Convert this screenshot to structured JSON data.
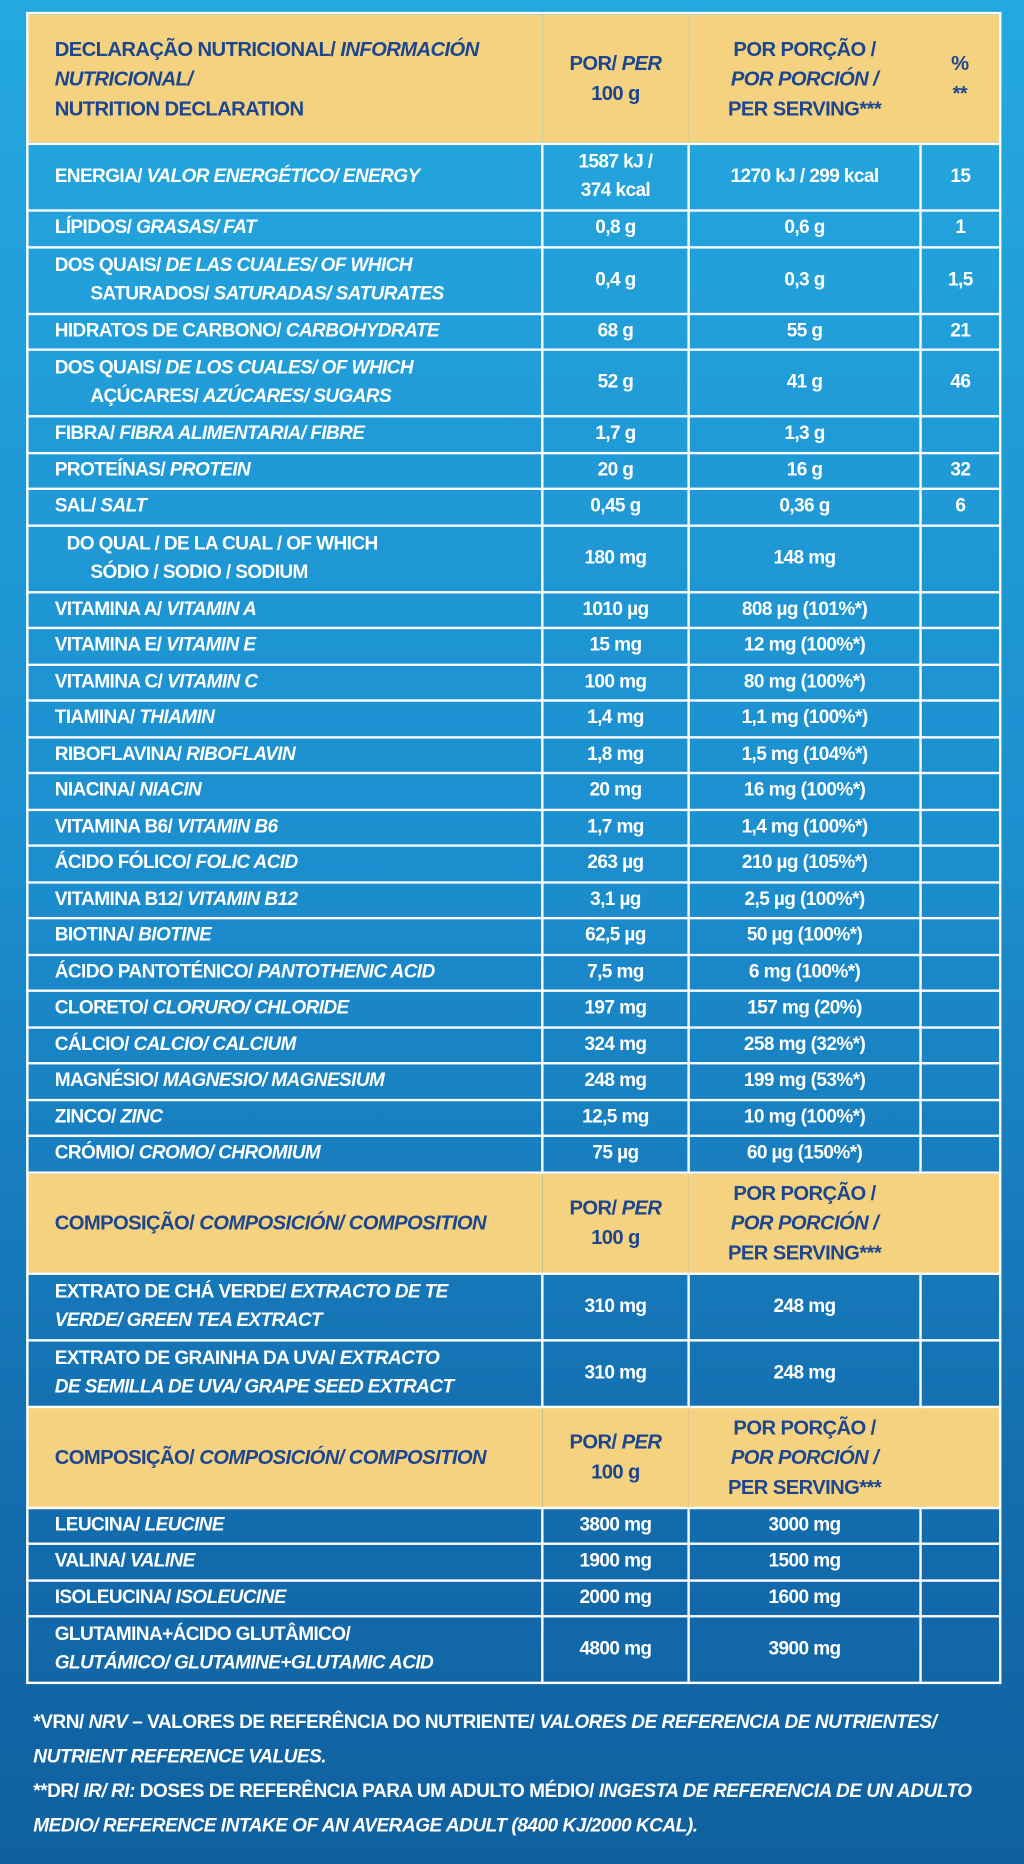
{
  "sections": [
    {
      "header": {
        "label": [
          [
            "DECLARAÇÃO NUTRICIONAL/",
            {
              "text": "INFORMACIÓN",
              "italic": true
            }
          ],
          [
            {
              "text": "NUTRICIONAL/",
              "italic": true
            }
          ],
          "NUTRITION DECLARATION"
        ],
        "per100": [
          [
            "POR/",
            {
              "text": "PER",
              "italic": true
            }
          ],
          "100 g"
        ],
        "serving": [
          "POR PORÇÃO /",
          [
            {
              "text": "POR PORCIÓN /",
              "italic": true
            }
          ],
          "PER SERVING***"
        ],
        "ri": [
          "%",
          "**"
        ]
      },
      "rows": [
        {
          "label": [
            [
              "ENERGIA/",
              {
                "text": "VALOR ENERGÉTICO/ ENERGY",
                "italic": true
              }
            ]
          ],
          "per100": [
            "1587 kJ /",
            "374 kcal"
          ],
          "serving": "1270 kJ / 299 kcal",
          "ri": "15"
        },
        {
          "label": [
            [
              "LÍPIDOS/",
              {
                "text": "GRASAS/ FAT",
                "italic": true
              }
            ]
          ],
          "per100": "0,8 g",
          "serving": "0,6 g",
          "ri": "1"
        },
        {
          "label": [
            [
              "DOS QUAIS/",
              {
                "text": "DE LAS CUALES/ OF WHICH",
                "italic": true
              }
            ],
            [
              "SATURADOS/",
              {
                "text": "SATURADAS/ SATURATES",
                "italic": true
              }
            ]
          ],
          "per100": "0,4 g",
          "serving": "0,3 g",
          "ri": "1,5"
        },
        {
          "label": [
            [
              "HIDRATOS DE CARBONO/",
              {
                "text": "CARBOHYDRATE",
                "italic": true
              }
            ]
          ],
          "per100": "68 g",
          "serving": "55 g",
          "ri": "21"
        },
        {
          "label": [
            [
              "DOS QUAIS/",
              {
                "text": "DE LOS CUALES/ OF WHICH",
                "italic": true
              }
            ],
            [
              "AÇÚCARES/",
              {
                "text": "AZÚCARES/ SUGARS",
                "italic": true
              }
            ]
          ],
          "per100": "52 g",
          "serving": "41 g",
          "ri": "46"
        },
        {
          "label": [
            [
              "FIBRA/",
              {
                "text": "FIBRA ALIMENTARIA/ FIBRE",
                "italic": true
              }
            ]
          ],
          "per100": "1,7 g",
          "serving": "1,3 g"
        },
        {
          "label": [
            [
              "PROTEÍNAS/",
              {
                "text": "PROTEIN",
                "italic": true
              }
            ]
          ],
          "per100": "20 g",
          "serving": "16 g",
          "ri": "32"
        },
        {
          "label": [
            [
              "SAL/",
              {
                "text": "SALT",
                "italic": true
              }
            ]
          ],
          "per100": "0,45 g",
          "serving": "0,36 g",
          "ri": "6"
        },
        {
          "label": [
            "DO QUAL / DE LA CUAL / OF WHICH",
            "SÓDIO / SODIO / SODIUM"
          ],
          "per100": "180 mg",
          "serving": "148 mg"
        },
        {
          "label": [
            [
              "VITAMINA A/",
              {
                "text": "VITAMIN A",
                "italic": true
              }
            ]
          ],
          "per100": "1010 µg",
          "serving": "808 µg (101%*)"
        },
        {
          "label": [
            [
              "VITAMINA E/",
              {
                "text": "VITAMIN E",
                "italic": true
              }
            ]
          ],
          "per100": "15 mg",
          "serving": "12 mg (100%*)"
        },
        {
          "label": [
            [
              "VITAMINA C/",
              {
                "text": "VITAMIN C",
                "italic": true
              }
            ]
          ],
          "per100": "100 mg",
          "serving": "80 mg (100%*)"
        },
        {
          "label": [
            [
              "TIAMINA/",
              {
                "text": "THIAMIN",
                "italic": true
              }
            ]
          ],
          "per100": "1,4 mg",
          "serving": "1,1 mg (100%*)"
        },
        {
          "label": [
            [
              "RIBOFLAVINA/",
              {
                "text": "RIBOFLAVIN",
                "italic": true
              }
            ]
          ],
          "per100": "1,8 mg",
          "serving": "1,5 mg (104%*)"
        },
        {
          "label": [
            [
              "NIACINA/",
              {
                "text": "NIACIN",
                "italic": true
              }
            ]
          ],
          "per100": "20 mg",
          "serving": "16 mg (100%*)"
        },
        {
          "label": [
            [
              "VITAMINA B6/",
              {
                "text": "VITAMIN B6",
                "italic": true
              }
            ]
          ],
          "per100": "1,7 mg",
          "serving": "1,4 mg (100%*)"
        },
        {
          "label": [
            [
              "ÁCIDO FÓLICO/",
              {
                "text": "FOLIC ACID",
                "italic": true
              }
            ]
          ],
          "per100": "263 µg",
          "serving": "210 µg (105%*)"
        },
        {
          "label": [
            [
              "VITAMINA B12/",
              {
                "text": "VITAMIN B12",
                "italic": true
              }
            ]
          ],
          "per100": "3,1 µg",
          "serving": "2,5 µg (100%*)"
        },
        {
          "label": [
            [
              "BIOTINA/",
              {
                "text": "BIOTINE",
                "italic": true
              }
            ]
          ],
          "per100": "62,5 µg",
          "serving": "50 µg (100%*)"
        },
        {
          "label": [
            [
              "ÁCIDO PANTOTÉNICO/",
              {
                "text": "PANTOTHENIC ACID",
                "italic": true
              }
            ]
          ],
          "per100": "7,5 mg",
          "serving": "6 mg (100%*)"
        },
        {
          "label": [
            [
              "CLORETO/",
              {
                "text": "CLORURO/ CHLORIDE",
                "italic": true
              }
            ]
          ],
          "per100": "197 mg",
          "serving": "157 mg (20%)"
        },
        {
          "label": [
            [
              "CÁLCIO/",
              {
                "text": "CALCIO/ CALCIUM",
                "italic": true
              }
            ]
          ],
          "per100": "324 mg",
          "serving": "258 mg (32%*)"
        },
        {
          "label": [
            [
              "MAGNÉSIO/",
              {
                "text": "MAGNESIO/ MAGNESIUM",
                "italic": true
              }
            ]
          ],
          "per100": "248 mg",
          "serving": "199 mg (53%*)"
        },
        {
          "label": [
            [
              "ZINCO/",
              {
                "text": "ZINC",
                "italic": true
              }
            ]
          ],
          "per100": "12,5 mg",
          "serving": "10 mg (100%*)"
        },
        {
          "label": [
            [
              "CRÓMIO/",
              {
                "text": "CROMO/ CHROMIUM",
                "italic": true
              }
            ]
          ],
          "per100": "75 µg",
          "serving": "60 µg (150%*)"
        }
      ]
    },
    {
      "header": {
        "label": [
          [
            "COMPOSIÇÃO/",
            {
              "text": "COMPOSICIÓN/ COMPOSITION",
              "italic": true
            }
          ]
        ],
        "per100": [
          [
            "POR/",
            {
              "text": "PER",
              "italic": true
            }
          ],
          "100 g"
        ],
        "serving": [
          "POR PORÇÃO /",
          [
            {
              "text": "POR PORCIÓN /",
              "italic": true
            }
          ],
          "PER SERVING***"
        ]
      },
      "rows": [
        {
          "label": [
            [
              "EXTRATO DE CHÁ VERDE/",
              {
                "text": "EXTRACTO DE TE",
                "italic": true
              }
            ],
            [
              {
                "text": "VERDE/ GREEN TEA EXTRACT",
                "italic": true
              }
            ]
          ],
          "per100": "310 mg",
          "serving": "248 mg"
        },
        {
          "label": [
            [
              "EXTRATO DE GRAINHA DA UVA/",
              {
                "text": "EXTRACTO",
                "italic": true
              }
            ],
            [
              {
                "text": "DE SEMILLA DE UVA/ GRAPE SEED EXTRACT",
                "italic": true
              }
            ]
          ],
          "per100": "310 mg",
          "serving": "248 mg"
        }
      ]
    },
    {
      "header": {
        "label": [
          [
            "COMPOSIÇÃO/",
            {
              "text": "COMPOSICIÓN/ COMPOSITION",
              "italic": true
            }
          ]
        ],
        "per100": [
          [
            "POR/",
            {
              "text": "PER",
              "italic": true
            }
          ],
          "100 g"
        ],
        "serving": [
          "POR PORÇÃO /",
          [
            {
              "text": "POR PORCIÓN /",
              "italic": true
            }
          ],
          "PER SERVING***"
        ]
      },
      "rows": [
        {
          "label": [
            [
              "LEUCINA/",
              {
                "text": "LEUCINE",
                "italic": true
              }
            ]
          ],
          "per100": "3800 mg",
          "serving": "3000 mg"
        },
        {
          "label": [
            [
              "VALINA/",
              {
                "text": "VALINE",
                "italic": true
              }
            ]
          ],
          "per100": "1900 mg",
          "serving": "1500 mg"
        },
        {
          "label": [
            [
              "ISOLEUCINA/",
              {
                "text": "ISOLEUCINE",
                "italic": true
              }
            ]
          ],
          "per100": "2000 mg",
          "serving": "1600 mg"
        },
        {
          "label": [
            [
              "GLUTAMINA+ÁCIDO GLUTÂMICO/"
            ],
            [
              {
                "text": "GLUTÁMICO/ GLUTAMINE+GLUTAMIC ACID",
                "italic": true
              }
            ]
          ],
          "per100": "4800 mg",
          "serving": "3900 mg"
        }
      ]
    }
  ],
  "footnotes": [
    [
      "*VRN/",
      {
        "text": "NRV",
        "italic": true
      },
      "– VALORES DE REFERÊNCIA DO NUTRIENTE/",
      {
        "text": "VALORES DE REFERENCIA DE NUTRIENTES/ NUTRIENT REFERENCE VALUES.",
        "italic": true
      }
    ],
    [
      "**DR/",
      {
        "text": "IR/ RI:",
        "italic": true
      },
      "DOSES DE REFERÊNCIA PARA UM ADULTO MÉDIO/",
      {
        "text": "INGESTA DE REFERENCIA DE UN ADULTO MEDIO/ REFERENCE INTAKE OF AN AVERAGE ADULT (8400 KJ/2000 KCAL).",
        "italic": true
      }
    ]
  ]
}
